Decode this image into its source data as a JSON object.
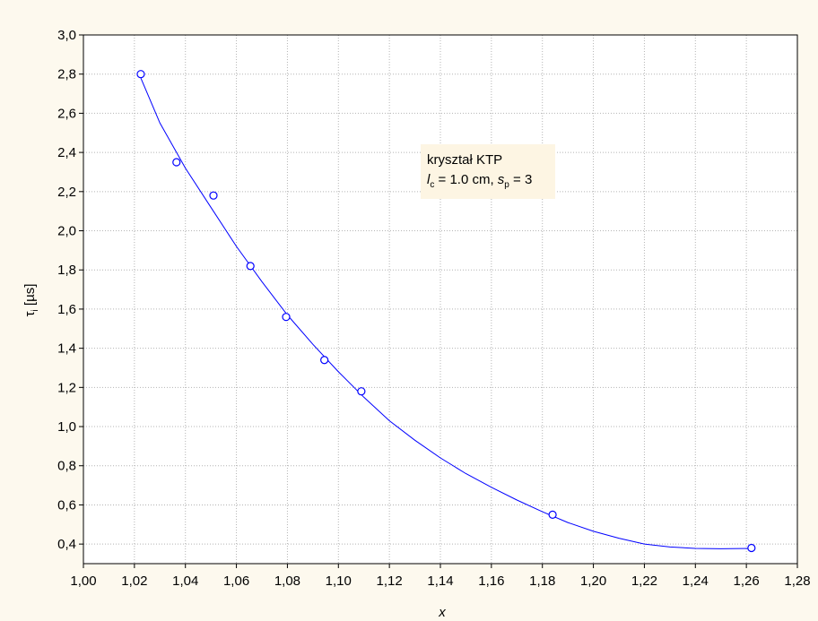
{
  "chart_data": {
    "type": "scatter",
    "xlabel": "x",
    "ylabel_main": "τ",
    "ylabel_sub": "i",
    "ylabel_unit": " [µs]",
    "xlim": [
      1.0,
      1.28
    ],
    "ylim": [
      0.3,
      3.0
    ],
    "x_ticks": [
      "1,00",
      "1,02",
      "1,04",
      "1,06",
      "1,08",
      "1,10",
      "1,12",
      "1,14",
      "1,16",
      "1,18",
      "1,20",
      "1,22",
      "1,24",
      "1,26",
      "1,28"
    ],
    "x_tick_values": [
      1.0,
      1.02,
      1.04,
      1.06,
      1.08,
      1.1,
      1.12,
      1.14,
      1.16,
      1.18,
      1.2,
      1.22,
      1.24,
      1.26,
      1.28
    ],
    "y_ticks": [
      "0,4",
      "0,6",
      "0,8",
      "1,0",
      "1,2",
      "1,4",
      "1,6",
      "1,8",
      "2,0",
      "2,2",
      "2,4",
      "2,6",
      "2,8",
      "3,0"
    ],
    "y_tick_values": [
      0.4,
      0.6,
      0.8,
      1.0,
      1.2,
      1.4,
      1.6,
      1.8,
      2.0,
      2.2,
      2.4,
      2.6,
      2.8,
      3.0
    ],
    "grid": true,
    "points": {
      "x": [
        1.0225,
        1.0365,
        1.051,
        1.0655,
        1.0795,
        1.0945,
        1.109,
        1.184,
        1.262
      ],
      "y": [
        2.8,
        2.35,
        2.18,
        1.82,
        1.56,
        1.34,
        1.18,
        0.55,
        0.38
      ]
    },
    "fit_curve": {
      "x": [
        1.0225,
        1.03,
        1.04,
        1.05,
        1.06,
        1.07,
        1.08,
        1.09,
        1.1,
        1.11,
        1.12,
        1.13,
        1.14,
        1.15,
        1.16,
        1.17,
        1.18,
        1.19,
        1.2,
        1.21,
        1.22,
        1.23,
        1.24,
        1.25,
        1.262
      ],
      "y": [
        2.78,
        2.55,
        2.32,
        2.12,
        1.92,
        1.74,
        1.57,
        1.42,
        1.28,
        1.15,
        1.03,
        0.93,
        0.84,
        0.76,
        0.69,
        0.625,
        0.565,
        0.51,
        0.465,
        0.43,
        0.4,
        0.385,
        0.378,
        0.376,
        0.378
      ]
    },
    "colors": {
      "series": "#0000ff",
      "grid": "#b4b4b4",
      "plot_background": "#ffffff",
      "page_background": "#fdf9ee",
      "annotation_background": "#fdf5e3"
    }
  },
  "annotation": {
    "line1": "kryształ KTP",
    "lc_var": "l",
    "lc_sub": "c",
    "lc_value": " = 1.0 cm, ",
    "sp_var": "s",
    "sp_sub": "p",
    "sp_value": " = 3"
  }
}
